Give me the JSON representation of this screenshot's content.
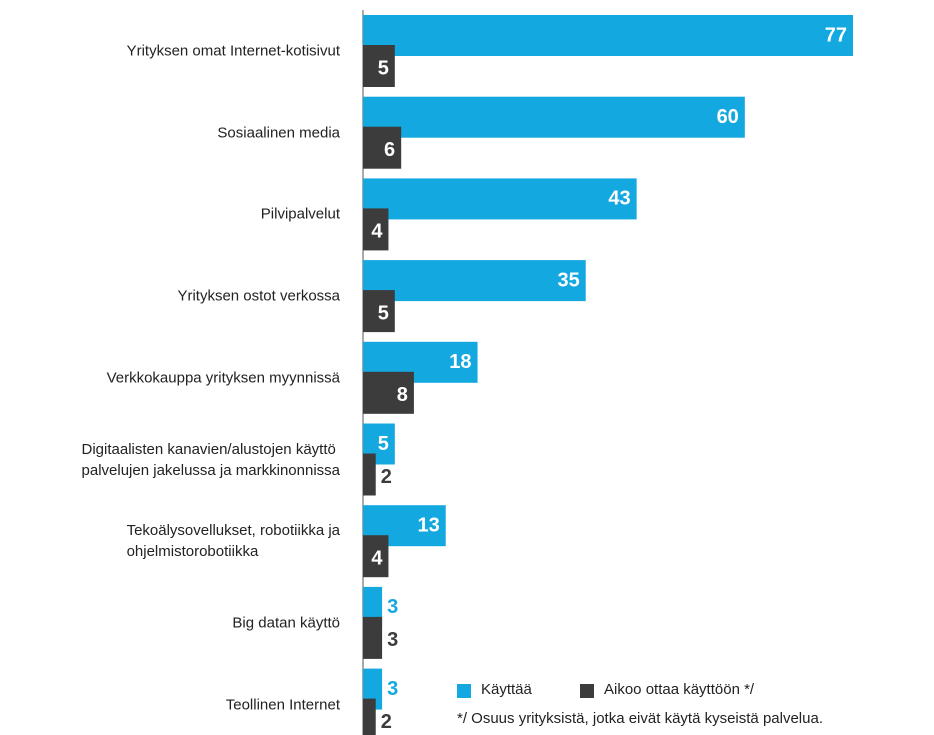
{
  "chart_data": {
    "type": "bar",
    "orientation": "horizontal",
    "categories": [
      "Yrityksen omat Internet-kotisivut",
      "Sosiaalinen media",
      "Pilvipalvelut",
      "Yrityksen ostot verkossa",
      "Verkkokauppa yrityksen myynnissä",
      "Digitaalisten kanavien/alustojen käyttö\npalvelujen jakelussa ja markkinonnissa",
      "Tekoälysovellukset, robotiikka ja\nohjelmistorobotiikka",
      "Big datan käyttö",
      "Teollinen Internet"
    ],
    "series": [
      {
        "name": "Käyttää",
        "color": "#14a8e1",
        "values": [
          77,
          60,
          43,
          35,
          18,
          5,
          13,
          3,
          3
        ]
      },
      {
        "name": "Aikoo ottaa käyttöön */",
        "color": "#3c3c3c",
        "values": [
          5,
          6,
          4,
          5,
          8,
          2,
          4,
          3,
          2
        ]
      }
    ],
    "footnote": "*/ Osuus yrityksistä, jotka eivät käytä kyseistä palvelua."
  }
}
